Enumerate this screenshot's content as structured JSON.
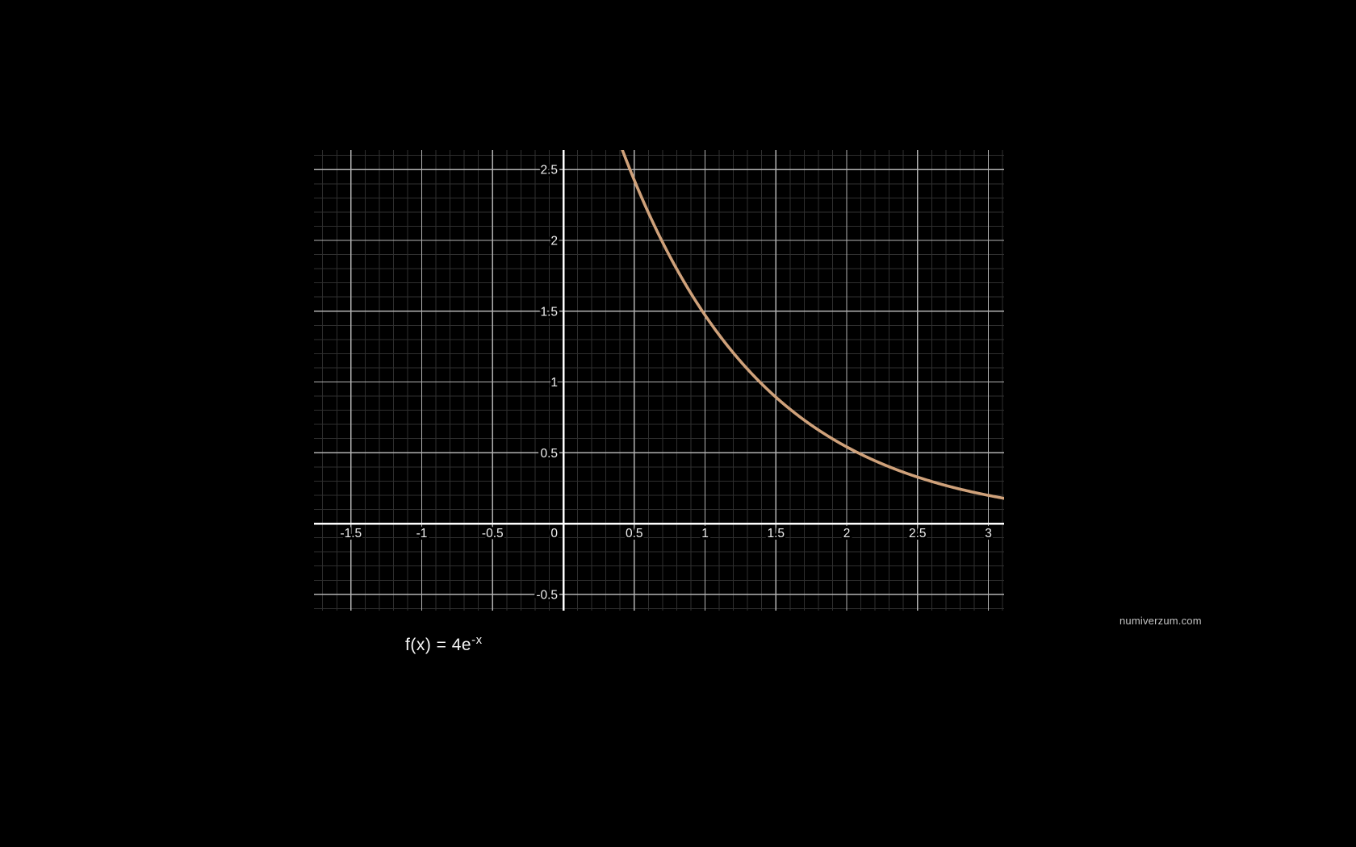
{
  "page": {
    "background_color": "#000000"
  },
  "watermark": {
    "text": "numiverzum.com"
  },
  "formula": {
    "main": "f(x) = 4e",
    "sup": "-x"
  },
  "chart_data": {
    "type": "line",
    "title": "",
    "xlabel": "",
    "ylabel": "",
    "grid": "on",
    "legend": "none",
    "function": {
      "expression": "f(x) = 4e^(-x)",
      "coefficient": 4,
      "exp_coefficient": -1
    },
    "axes": {
      "x_min": -1.761,
      "x_max": 3.111,
      "y_min": -0.615,
      "y_max": 2.638,
      "minor_step": 0.1,
      "major_step": 0.5
    },
    "x_ticks": [
      {
        "v": -1.5,
        "label": "-1.5"
      },
      {
        "v": -1,
        "label": "-1"
      },
      {
        "v": -0.5,
        "label": "-0.5"
      },
      {
        "v": 0,
        "label": "0"
      },
      {
        "v": 0.5,
        "label": "0.5"
      },
      {
        "v": 1,
        "label": "1"
      },
      {
        "v": 1.5,
        "label": "1.5"
      },
      {
        "v": 2,
        "label": "2"
      },
      {
        "v": 2.5,
        "label": "2.5"
      },
      {
        "v": 3,
        "label": "3"
      }
    ],
    "y_ticks": [
      {
        "v": 2.5,
        "label": "2.5"
      },
      {
        "v": 2,
        "label": "2"
      },
      {
        "v": 1.5,
        "label": "1.5"
      },
      {
        "v": 1,
        "label": "1"
      },
      {
        "v": 0.5,
        "label": "0.5"
      },
      {
        "v": -0.5,
        "label": "-0.5"
      }
    ],
    "series": [
      {
        "name": "f(x) = 4e^(-x)",
        "color": "#cfa17a",
        "points": [
          [
            0.42,
            2.64
          ],
          [
            0.5,
            2.43
          ],
          [
            0.75,
            1.89
          ],
          [
            1,
            1.47
          ],
          [
            1.25,
            1.15
          ],
          [
            1.5,
            0.89
          ],
          [
            1.75,
            0.69
          ],
          [
            2,
            0.54
          ],
          [
            2.25,
            0.42
          ],
          [
            2.5,
            0.33
          ],
          [
            2.75,
            0.26
          ],
          [
            3,
            0.2
          ],
          [
            3.11,
            0.18
          ]
        ]
      }
    ],
    "colors": {
      "background": "#000000",
      "grid_minor": "#2f2f2f",
      "grid_major": "#b2b2b2",
      "axis": "#ffffff",
      "curve": "#cfa17a",
      "tick_text": "#efefef",
      "watermark_text": "#c4c4c4",
      "formula_text": "#f5f5f5"
    }
  }
}
